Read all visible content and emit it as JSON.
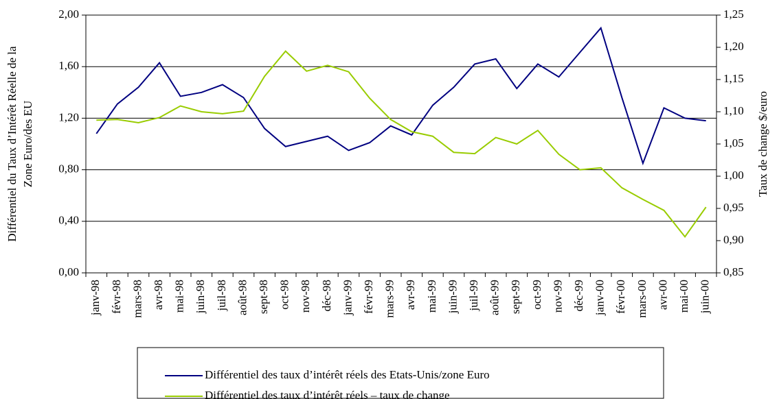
{
  "chart_data": {
    "type": "line",
    "ylabel": [
      "Différentiel du Taux d’Intérêt Réelle de la",
      "Zone Euro/des EU"
    ],
    "y2label": "Taux de change $/euro",
    "categories": [
      "janv-98",
      "févr-98",
      "mars-98",
      "avr-98",
      "mai-98",
      "juin-98",
      "juil-98",
      "août-98",
      "sept-98",
      "oct-98",
      "nov-98",
      "déc-98",
      "janv-99",
      "févr-99",
      "mars-99",
      "avr-99",
      "mai-99",
      "juin-99",
      "juil-99",
      "août-99",
      "sept-99",
      "oct-99",
      "nov-99",
      "déc-99",
      "janv-00",
      "févr-00",
      "mars-00",
      "avr-00",
      "mai-00",
      "juin-00"
    ],
    "series": [
      {
        "name": "Différentiel des taux d’intérêt réels des Etats-Unis/zone Euro",
        "color": "#000080",
        "axis": "y",
        "values": [
          1.08,
          1.31,
          1.44,
          1.63,
          1.37,
          1.4,
          1.46,
          1.36,
          1.12,
          0.98,
          1.02,
          1.06,
          0.95,
          1.01,
          1.14,
          1.07,
          1.3,
          1.44,
          1.62,
          1.66,
          1.43,
          1.62,
          1.52,
          1.71,
          1.9,
          1.36,
          0.85,
          1.28,
          1.2,
          1.18
        ]
      },
      {
        "name": "Différentiel des taux d’intérêt réels – taux de change",
        "color": "#99cc00",
        "axis": "y2",
        "values": [
          1.087,
          1.088,
          1.083,
          1.091,
          1.109,
          1.1,
          1.097,
          1.101,
          1.155,
          1.194,
          1.163,
          1.172,
          1.162,
          1.121,
          1.088,
          1.069,
          1.062,
          1.037,
          1.035,
          1.06,
          1.05,
          1.071,
          1.034,
          1.01,
          1.013,
          0.982,
          0.964,
          0.947,
          0.906,
          0.952
        ]
      }
    ],
    "ylim": [
      0,
      2
    ],
    "yticks": [
      {
        "value": 0,
        "label": "0,00"
      },
      {
        "value": 0.4,
        "label": "0,40"
      },
      {
        "value": 0.8,
        "label": "0,80"
      },
      {
        "value": 1.2,
        "label": "1,20"
      },
      {
        "value": 1.6,
        "label": "1,60"
      },
      {
        "value": 2,
        "label": "2,00"
      }
    ],
    "y2lim": [
      0.85,
      1.25
    ],
    "y2ticks": [
      {
        "value": 0.85,
        "label": "0,85"
      },
      {
        "value": 0.9,
        "label": "0,90"
      },
      {
        "value": 0.95,
        "label": "0,95"
      },
      {
        "value": 1.0,
        "label": "1,00"
      },
      {
        "value": 1.05,
        "label": "1,05"
      },
      {
        "value": 1.1,
        "label": "1,10"
      },
      {
        "value": 1.15,
        "label": "1,15"
      },
      {
        "value": 1.2,
        "label": "1,20"
      },
      {
        "value": 1.25,
        "label": "1,25"
      }
    ],
    "grid": true
  }
}
